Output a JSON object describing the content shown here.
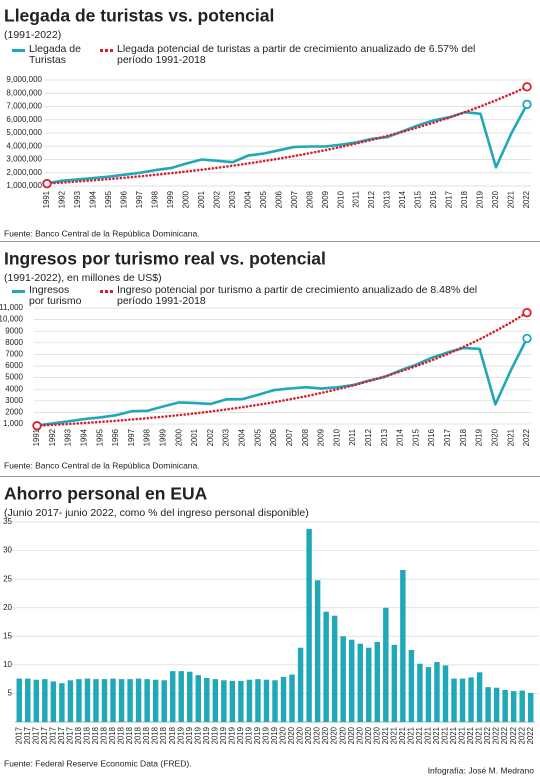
{
  "chart_data": [
    {
      "type": "line",
      "title": "Llegada de turistas vs. potencial",
      "subtitle": "(1991-2022)",
      "source": "Fuente: Banco Central de la República Dominicana.",
      "categories": [
        "1991",
        "1992",
        "1993",
        "1994",
        "1995",
        "1996",
        "1997",
        "1998",
        "1999",
        "2000",
        "2001",
        "2002",
        "2003",
        "2004",
        "2005",
        "2006",
        "2007",
        "2008",
        "2009",
        "2010",
        "2011",
        "2012",
        "2013",
        "2014",
        "2015",
        "2016",
        "2017",
        "2018",
        "2019",
        "2020",
        "2021",
        "2022"
      ],
      "series": [
        {
          "name": "Llegada de Turistas",
          "color": "#21a8b8",
          "style": "solid",
          "values": [
            1200000,
            1400000,
            1500000,
            1600000,
            1700000,
            1850000,
            2000000,
            2200000,
            2350000,
            2700000,
            3000000,
            2900000,
            2800000,
            3300000,
            3450000,
            3700000,
            3950000,
            3980000,
            3990000,
            4120000,
            4300000,
            4560000,
            4690000,
            5140000,
            5600000,
            5960000,
            6190000,
            6570000,
            6450000,
            2410000,
            4990000,
            7160000
          ]
        },
        {
          "name": "Llegada potencial de turistas a partir de crecimiento anualizado de 6.57% del período 1991-2018",
          "color": "#d6202f",
          "style": "dotted",
          "values": [
            1180000,
            1258000,
            1340000,
            1428000,
            1522000,
            1622000,
            1729000,
            1842000,
            1963000,
            2092000,
            2230000,
            2376000,
            2532000,
            2699000,
            2876000,
            3065000,
            3266000,
            3481000,
            3710000,
            3953000,
            4213000,
            4490000,
            4785000,
            5099000,
            5435000,
            5792000,
            6172000,
            6578000,
            7010000,
            7470000,
            7961000,
            8484000
          ]
        }
      ],
      "ylim": [
        1000000,
        9000000
      ],
      "yticks": [
        {
          "value": 1000000,
          "label": "1,000,000"
        },
        {
          "value": 2000000,
          "label": "2,000,000"
        },
        {
          "value": 3000000,
          "label": "3,000,000"
        },
        {
          "value": 4000000,
          "label": "4,000,000"
        },
        {
          "value": 5000000,
          "label": "5,000,000"
        },
        {
          "value": 6000000,
          "label": "6,000,000"
        },
        {
          "value": 7000000,
          "label": "7,000,000"
        },
        {
          "value": 8000000,
          "label": "8,000,000"
        },
        {
          "value": 9000000,
          "label": "9,000,000"
        }
      ],
      "grid": true
    },
    {
      "type": "line",
      "title": "Ingresos por turismo real vs. potencial",
      "subtitle": "(1991-2022), en millones de US$)",
      "source": "Fuente: Banco Central de la República Dominicana.",
      "categories": [
        "1991",
        "1992",
        "1993",
        "1994",
        "1995",
        "1996",
        "1997",
        "1998",
        "1999",
        "2000",
        "2001",
        "2002",
        "2003",
        "2004",
        "2005",
        "2006",
        "2007",
        "2008",
        "2009",
        "2010",
        "2011",
        "2012",
        "2013",
        "2014",
        "2015",
        "2016",
        "2017",
        "2018",
        "2019",
        "2020",
        "2021",
        "2022"
      ],
      "series": [
        {
          "name": "Ingresos por turismo",
          "color": "#21a8b8",
          "style": "solid",
          "values": [
            880,
            1050,
            1230,
            1430,
            1570,
            1760,
            2100,
            2140,
            2520,
            2860,
            2800,
            2730,
            3130,
            3150,
            3520,
            3920,
            4060,
            4170,
            4050,
            4160,
            4350,
            4740,
            5060,
            5630,
            6120,
            6720,
            7180,
            7560,
            7470,
            2690,
            5690,
            8380
          ]
        },
        {
          "name": "Ingreso potencial por turismo a partir de crecimiento anualizado de 8.48% del período 1991-2018",
          "color": "#d6202f",
          "style": "dotted",
          "values": [
            850,
            922,
            1000,
            1085,
            1177,
            1277,
            1385,
            1503,
            1630,
            1768,
            1918,
            2081,
            2258,
            2449,
            2657,
            2882,
            3126,
            3392,
            3679,
            3991,
            4330,
            4697,
            5095,
            5527,
            5996,
            6504,
            7056,
            7654,
            8303,
            9007,
            9771,
            10600
          ]
        }
      ],
      "ylim": [
        1000,
        11000
      ],
      "yticks": [
        {
          "value": 1000,
          "label": "1,000"
        },
        2000,
        3000,
        4000,
        5000,
        6000,
        7000,
        8000,
        9000,
        {
          "value": 10000,
          "label": "10,000"
        },
        {
          "value": 11000,
          "label": "11,000"
        }
      ],
      "grid": true
    },
    {
      "type": "bar",
      "title": "Ahorro personal en EUA",
      "subtitle": "(Junio 2017- junio 2022, como % del ingreso personal disponible)",
      "source": "Fuente: Federal Reserve Economic Data (FRED).",
      "color": "#21a8b8",
      "categories": [
        "2017",
        "2017",
        "2017",
        "2017",
        "2017",
        "2017",
        "2017",
        "2018",
        "2018",
        "2018",
        "2018",
        "2018",
        "2018",
        "2018",
        "2018",
        "2018",
        "2018",
        "2018",
        "2018",
        "2019",
        "2019",
        "2019",
        "2019",
        "2019",
        "2019",
        "2019",
        "2019",
        "2019",
        "2019",
        "2019",
        "2019",
        "2020",
        "2020",
        "2020",
        "2020",
        "2020",
        "2020",
        "2020",
        "2020",
        "2020",
        "2020",
        "2020",
        "2020",
        "2021",
        "2021",
        "2021",
        "2021",
        "2021",
        "2021",
        "2021",
        "2021",
        "2021",
        "2021",
        "2021",
        "2021",
        "2022",
        "2022",
        "2022",
        "2022",
        "2022",
        "2022"
      ],
      "values": [
        7.6,
        7.6,
        7.4,
        7.5,
        7.1,
        6.8,
        7.3,
        7.5,
        7.6,
        7.5,
        7.5,
        7.6,
        7.5,
        7.5,
        7.6,
        7.5,
        7.4,
        7.3,
        8.9,
        8.9,
        8.8,
        8.2,
        7.7,
        7.5,
        7.3,
        7.2,
        7.2,
        7.4,
        7.5,
        7.4,
        7.3,
        7.9,
        8.3,
        13.0,
        33.8,
        24.8,
        19.3,
        18.6,
        15.0,
        14.4,
        13.7,
        13.0,
        14.0,
        20.0,
        13.5,
        26.6,
        12.6,
        10.2,
        9.6,
        10.5,
        9.9,
        7.6,
        7.6,
        7.8,
        8.7,
        6.1,
        6.0,
        5.6,
        5.4,
        5.5,
        5.1
      ],
      "ylim": [
        0,
        35
      ],
      "yticks": [
        5,
        10,
        15,
        20,
        25,
        30,
        35
      ],
      "grid": true
    }
  ],
  "credit": "Infografía: José M. Medrano"
}
